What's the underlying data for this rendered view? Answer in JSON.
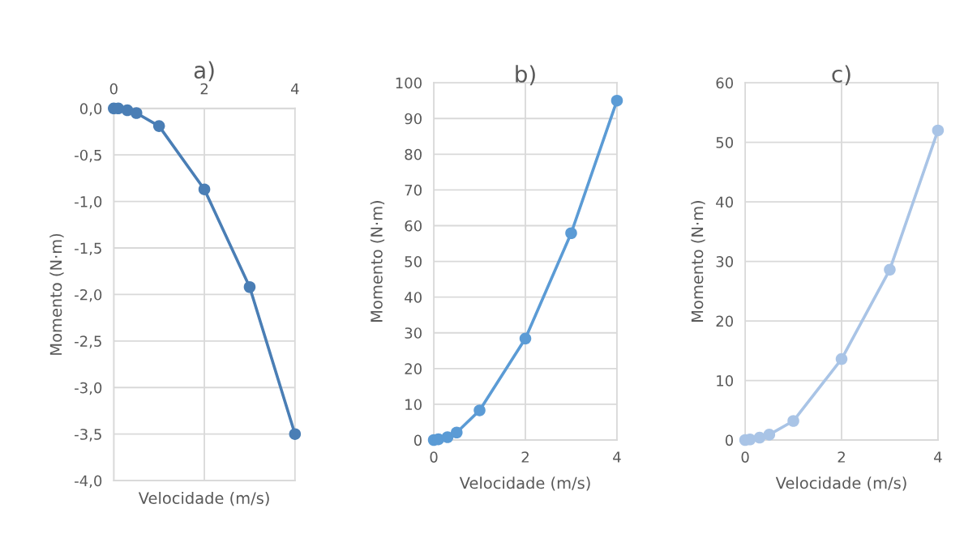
{
  "chart_data": [
    {
      "type": "line",
      "title": "a)",
      "xlabel": "Velocidade (m/s)",
      "ylabel": "Momento (N·m)",
      "xlim": [
        0,
        4
      ],
      "xticks": [
        0,
        2,
        4
      ],
      "ylim": [
        -4,
        0
      ],
      "yticks": [
        {
          "value": -4,
          "label": "-4,0"
        },
        {
          "value": -3.5,
          "label": "-3,5"
        },
        {
          "value": -3,
          "label": "-3,0"
        },
        {
          "value": -2.5,
          "label": "-2,5"
        },
        {
          "value": -2,
          "label": "-2,0"
        },
        {
          "value": -1.5,
          "label": "-1,5"
        },
        {
          "value": -1,
          "label": "-1,0"
        },
        {
          "value": -0.5,
          "label": "-0,5"
        },
        {
          "value": 0,
          "label": "0,0"
        }
      ],
      "grid": true,
      "marker": "circle",
      "x": [
        0,
        0.1,
        0.3,
        0.5,
        1,
        2,
        3,
        4
      ],
      "series": [
        {
          "color": "#4a7eb5",
          "values": [
            0,
            0,
            -0.02,
            -0.05,
            -0.19,
            -0.87,
            -1.92,
            -3.5
          ]
        }
      ]
    },
    {
      "type": "line",
      "title": "b)",
      "xlabel": "Velocidade (m/s)",
      "ylabel": "Momento (N·m)",
      "xlim": [
        0,
        4
      ],
      "xticks": [
        0,
        2,
        4
      ],
      "ylim": [
        0,
        100
      ],
      "yticks": [
        0,
        10,
        20,
        30,
        40,
        50,
        60,
        70,
        80,
        90,
        100
      ],
      "grid": true,
      "marker": "circle",
      "x": [
        0,
        0.1,
        0.3,
        0.5,
        1,
        2,
        3,
        4
      ],
      "series": [
        {
          "color": "#5b9bd5",
          "values": [
            0,
            0.2,
            0.8,
            2.1,
            8.3,
            28.4,
            57.9,
            95
          ]
        }
      ]
    },
    {
      "type": "line",
      "title": "c)",
      "xlabel": "Velocidade (m/s)",
      "ylabel": "Momento (N·m)",
      "xlim": [
        0,
        4
      ],
      "xticks": [
        0,
        2,
        4
      ],
      "ylim": [
        0,
        60
      ],
      "yticks": [
        0,
        10,
        20,
        30,
        40,
        50,
        60
      ],
      "grid": true,
      "marker": "circle",
      "x": [
        0,
        0.1,
        0.3,
        0.5,
        1,
        2,
        3,
        4
      ],
      "series": [
        {
          "color": "#a9c4e6",
          "values": [
            0,
            0.1,
            0.4,
            0.9,
            3.2,
            13.6,
            28.6,
            52
          ]
        }
      ]
    }
  ]
}
